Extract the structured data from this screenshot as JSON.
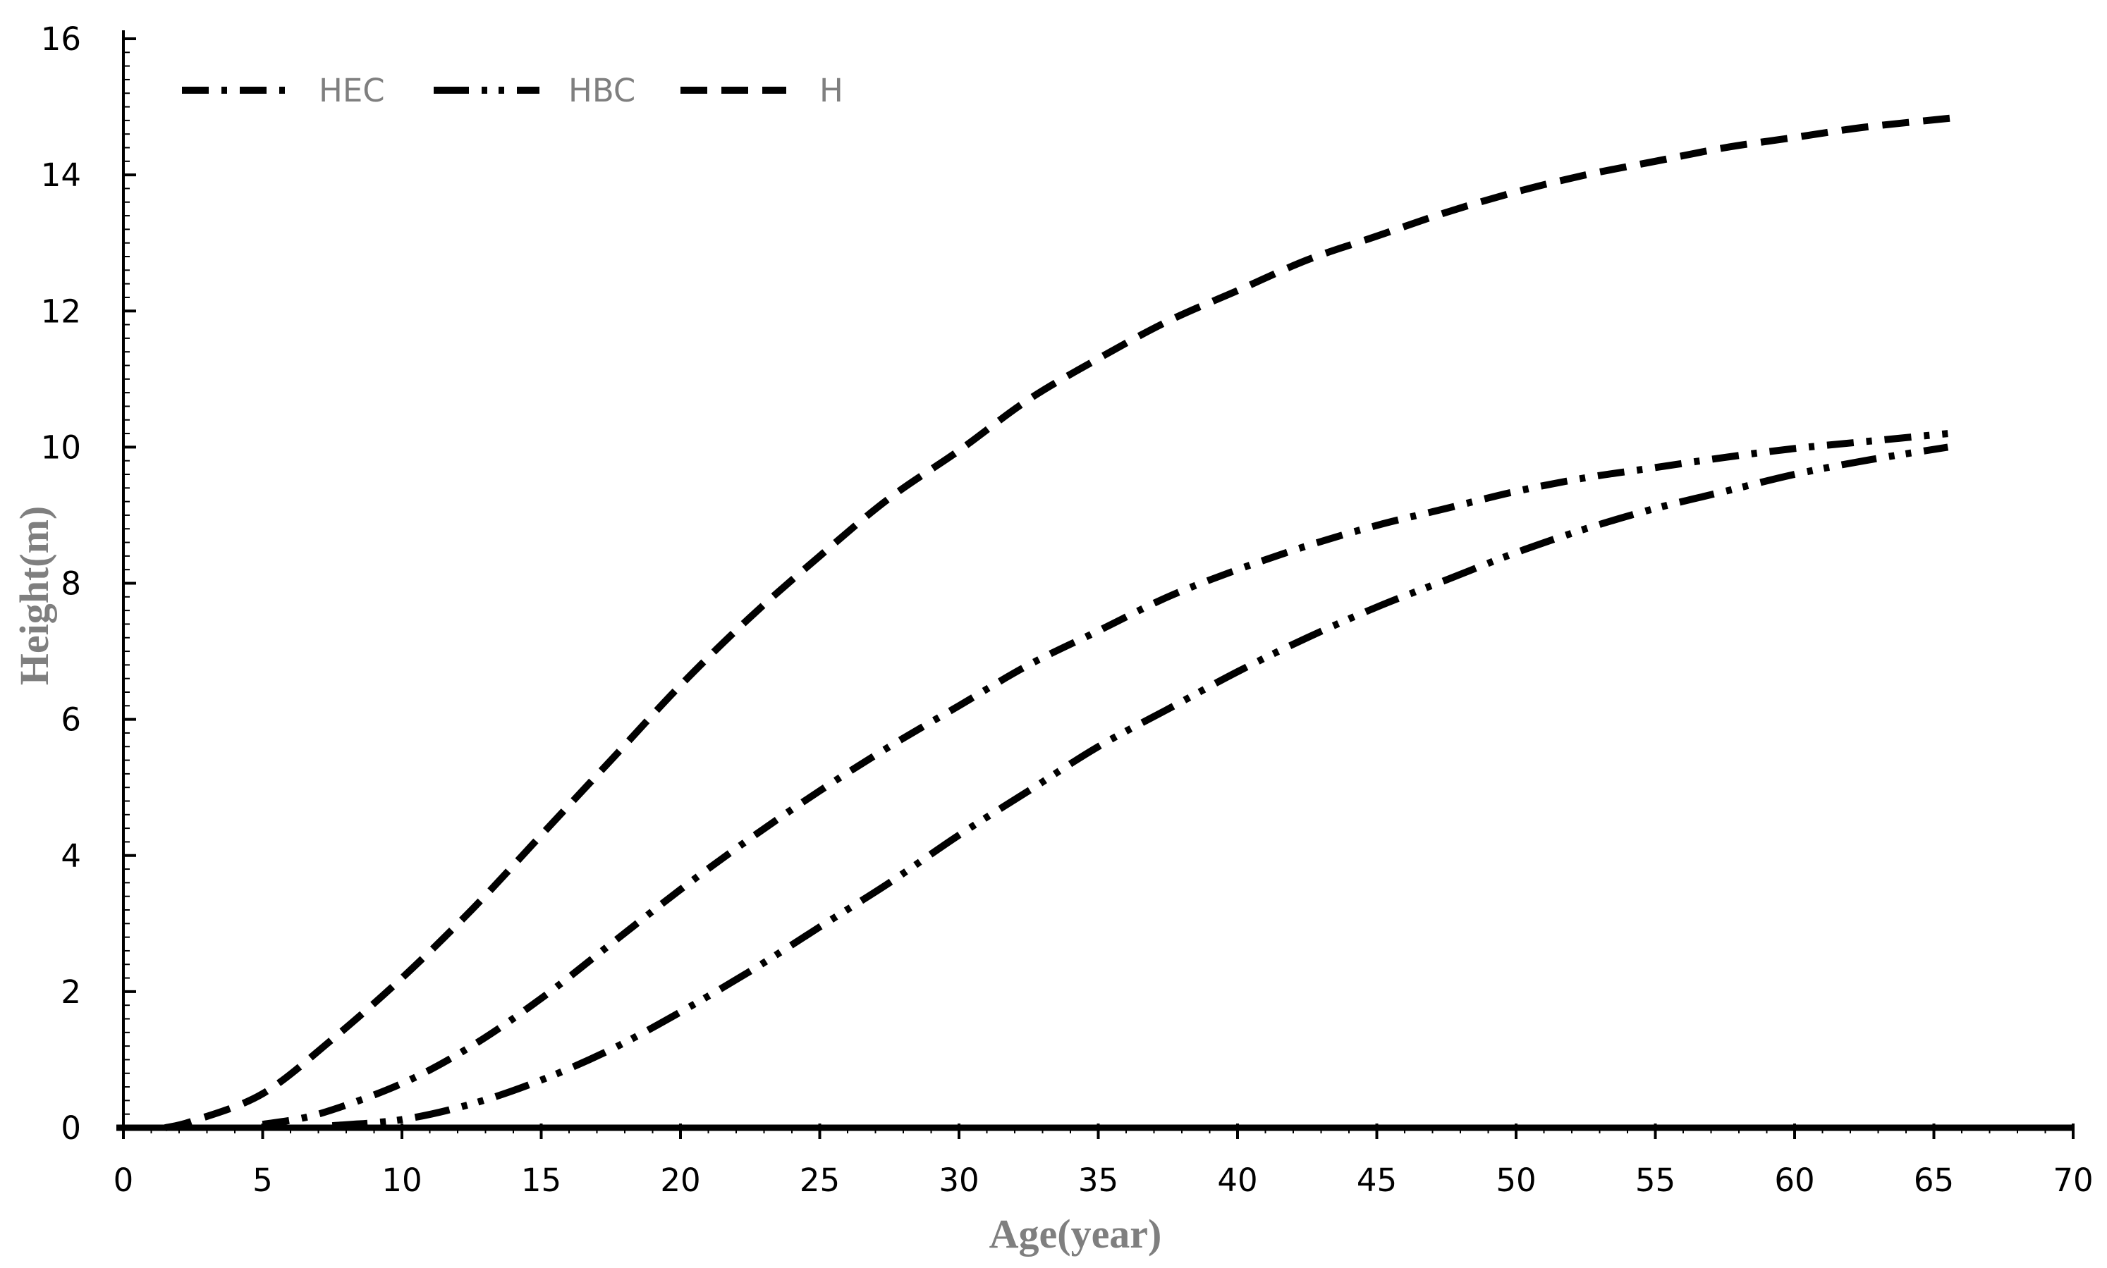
{
  "chart_data": {
    "type": "line",
    "title": "",
    "xlabel": "Age(year)",
    "ylabel": "Height(m)",
    "xlim": [
      0,
      70
    ],
    "ylim": [
      0,
      16
    ],
    "xticks": [
      0,
      5,
      10,
      15,
      20,
      25,
      30,
      35,
      40,
      45,
      50,
      55,
      60,
      65,
      70
    ],
    "yticks": [
      0,
      2,
      4,
      6,
      8,
      10,
      12,
      14,
      16
    ],
    "grid": false,
    "legend_position": "top-left",
    "line_color": "#000000",
    "series": [
      {
        "name": "HEC",
        "style": "dash-dot",
        "x": [
          5,
          7,
          10,
          12.5,
          15,
          17.5,
          20,
          22.5,
          25,
          27.5,
          30,
          32.5,
          35,
          37.5,
          40,
          42.5,
          45,
          47.5,
          50,
          52.5,
          55,
          57.5,
          60,
          62.5,
          65.5
        ],
        "y": [
          0.05,
          0.2,
          0.65,
          1.2,
          1.9,
          2.7,
          3.5,
          4.25,
          4.95,
          5.6,
          6.2,
          6.8,
          7.3,
          7.8,
          8.2,
          8.55,
          8.85,
          9.1,
          9.35,
          9.55,
          9.7,
          9.85,
          9.98,
          10.08,
          10.2
        ]
      },
      {
        "name": "HBC",
        "style": "dash-dot-dot",
        "x": [
          7.5,
          10,
          12.5,
          15,
          17.5,
          20,
          22.5,
          25,
          27.5,
          30,
          32.5,
          35,
          37.5,
          40,
          42.5,
          45,
          47.5,
          50,
          52.5,
          55,
          57.5,
          60,
          62.5,
          65.5
        ],
        "y": [
          0.03,
          0.12,
          0.35,
          0.7,
          1.15,
          1.7,
          2.3,
          2.95,
          3.6,
          4.3,
          4.95,
          5.6,
          6.15,
          6.7,
          7.2,
          7.65,
          8.05,
          8.45,
          8.8,
          9.1,
          9.35,
          9.6,
          9.8,
          10.0
        ]
      },
      {
        "name": "H",
        "style": "dash",
        "x": [
          1.5,
          2.5,
          5,
          7.5,
          10,
          12.5,
          15,
          17.5,
          20,
          22.5,
          25,
          27.5,
          30,
          32.5,
          35,
          37.5,
          40,
          42.5,
          45,
          47.5,
          50,
          52.5,
          55,
          57.5,
          60,
          62.5,
          66
        ],
        "y": [
          0.0,
          0.1,
          0.5,
          1.3,
          2.2,
          3.2,
          4.3,
          5.4,
          6.5,
          7.5,
          8.4,
          9.25,
          9.95,
          10.7,
          11.3,
          11.85,
          12.3,
          12.75,
          13.1,
          13.45,
          13.75,
          14.0,
          14.2,
          14.4,
          14.55,
          14.7,
          14.85
        ]
      }
    ]
  }
}
